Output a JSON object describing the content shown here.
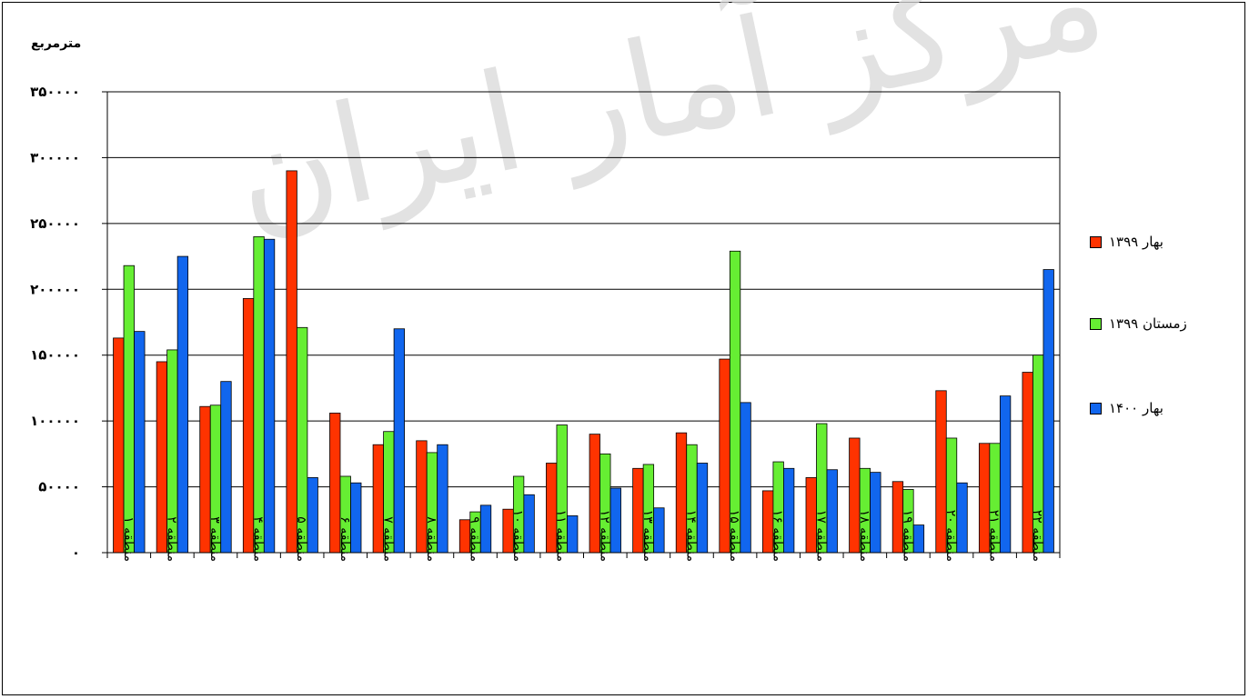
{
  "watermark_text": "مرکز آمار ایران",
  "chart_data": {
    "type": "bar",
    "title": "",
    "ylabel": "مترمربع",
    "xlabel": "",
    "ylim": [
      0,
      350000
    ],
    "y_ticks": [
      0,
      50000,
      100000,
      150000,
      200000,
      250000,
      300000,
      350000
    ],
    "y_tick_labels": [
      "۰",
      "۵۰۰۰۰",
      "۱۰۰۰۰۰",
      "۱۵۰۰۰۰",
      "۲۰۰۰۰۰",
      "۲۵۰۰۰۰",
      "۳۰۰۰۰۰",
      "۳۵۰۰۰۰"
    ],
    "grid": true,
    "legend_position": "right",
    "categories": [
      "منطقه ۱",
      "منطقه ۲",
      "منطقه ۳",
      "منطقه ۴",
      "منطقه ۵",
      "منطقه ۶",
      "منطقه ۷",
      "منطقه ۸",
      "منطقه ۹",
      "منطقه ۱۰",
      "منطقه ۱۱",
      "منطقه ۱۲",
      "منطقه ۱۳",
      "منطقه ۱۴",
      "منطقه ۱۵",
      "منطقه ۱۶",
      "منطقه ۱۷",
      "منطقه ۱۸",
      "منطقه ۱۹",
      "منطقه ۲۰",
      "منطقه ۲۱",
      "منطقه ۲۲"
    ],
    "series": [
      {
        "name": "بهار ۱۳۹۹",
        "color": "#ff3300",
        "values": [
          163000,
          145000,
          111000,
          193000,
          290000,
          106000,
          82000,
          85000,
          25000,
          33000,
          68000,
          90000,
          64000,
          91000,
          147000,
          47000,
          57000,
          87000,
          54000,
          123000,
          83000,
          137000
        ]
      },
      {
        "name": "زمستان ۱۳۹۹",
        "color": "#66ee33",
        "values": [
          218000,
          154000,
          112000,
          240000,
          171000,
          58000,
          92000,
          76000,
          31000,
          58000,
          97000,
          75000,
          67000,
          82000,
          229000,
          69000,
          98000,
          64000,
          48000,
          87000,
          83000,
          150000
        ]
      },
      {
        "name": "بهار ۱۴۰۰",
        "color": "#1166ee",
        "values": [
          168000,
          225000,
          130000,
          238000,
          57000,
          53000,
          170000,
          82000,
          36000,
          44000,
          28000,
          49000,
          34000,
          68000,
          114000,
          64000,
          63000,
          61000,
          21000,
          53000,
          119000,
          215000
        ]
      }
    ]
  }
}
